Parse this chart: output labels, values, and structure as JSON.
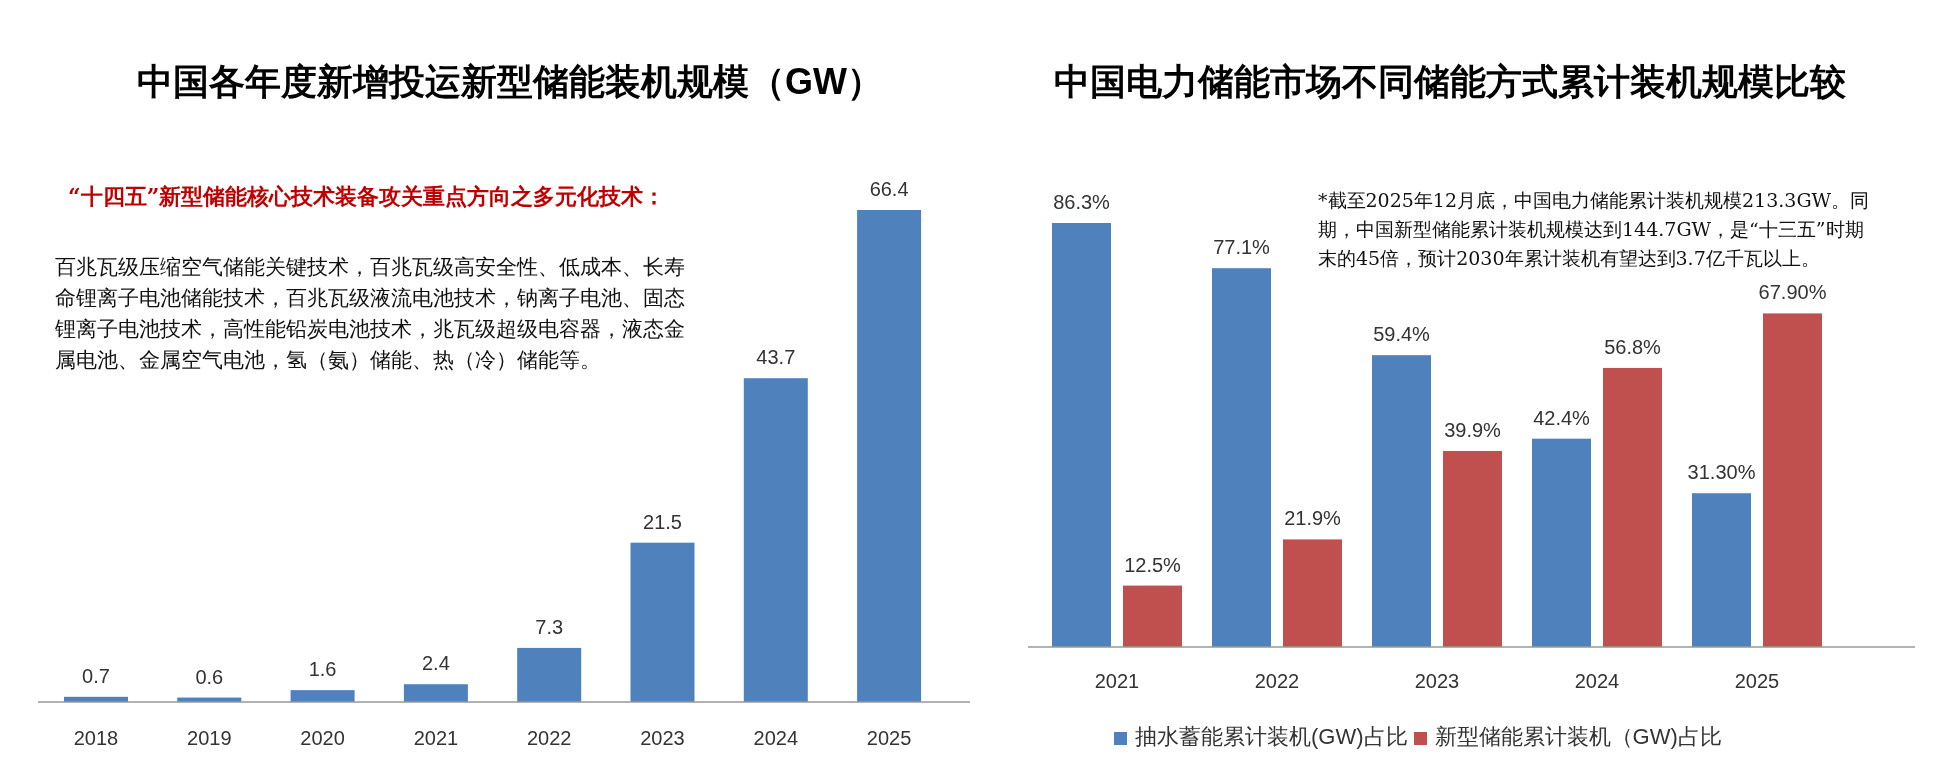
{
  "chart_data": [
    {
      "type": "bar",
      "title": "中国各年度新增投运新型储能装机规模（GW）",
      "categories": [
        "2018",
        "2019",
        "2020",
        "2021",
        "2022",
        "2023",
        "2024",
        "2025"
      ],
      "series": [
        {
          "color": "#4f81bd",
          "values": [
            0.7,
            0.6,
            1.6,
            2.4,
            7.3,
            21.5,
            43.7,
            66.4
          ]
        }
      ],
      "data_labels": true,
      "legend": false,
      "annotations": [
        "“十四五”新型储能核心技术装备攻关重点方向之多元化技术：",
        "百兆瓦级压缩空气储能关键技术，百兆瓦级高安全性、低成本、长寿命锂离子电池储能技术，百兆瓦级液流电池技术，钠离子电池、固态锂离子电池技术，高性能铅炭电池技术，兆瓦级超级电容器，液态金属电池、金属空气电池，氢（氨）储能、热（冷）储能等。"
      ]
    },
    {
      "type": "bar",
      "title": "中国电力储能市场不同储能方式累计装机规模比较",
      "categories": [
        "2021",
        "2022",
        "2023",
        "2024",
        "2025"
      ],
      "series": [
        {
          "name": "抽水蓄能累计装机(GW)占比",
          "color": "#4f81bd",
          "values": [
            86.3,
            77.1,
            59.4,
            42.4,
            31.3
          ],
          "value_labels": [
            "86.3%",
            "77.1%",
            "59.4%",
            "42.4%",
            "31.30%"
          ]
        },
        {
          "name": "新型储能累计装机（GW)占比",
          "color": "#c0504d",
          "values": [
            12.5,
            21.9,
            39.9,
            56.8,
            67.9
          ],
          "value_labels": [
            "12.5%",
            "21.9%",
            "39.9%",
            "56.8%",
            "67.90%"
          ]
        }
      ],
      "legend": "bottom",
      "annotations": [
        "*截至2025年12月底，中国电力储能累计装机规模213.3GW。同期，中国新型储能累计装机规模达到144.7GW，是“十三五”时期末的45倍，预计2030年累计装机有望达到3.7亿千瓦以上。"
      ]
    }
  ]
}
